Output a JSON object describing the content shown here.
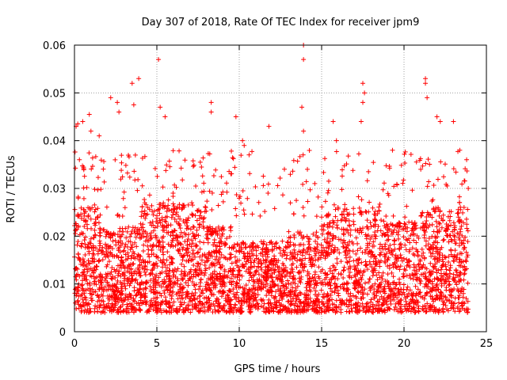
{
  "chart_data": {
    "type": "scatter",
    "title": "Day 307 of 2018, Rate Of TEC Index for receiver jpm9",
    "xlabel": "GPS time / hours",
    "ylabel": "ROTI / TECUs",
    "xlim": [
      0,
      25
    ],
    "ylim": [
      0,
      0.06
    ],
    "xticks": [
      0,
      5,
      10,
      15,
      20,
      25
    ],
    "xtick_labels": [
      "0",
      "5",
      "10",
      "15",
      "20",
      "25"
    ],
    "yticks": [
      0,
      0.01,
      0.02,
      0.03,
      0.04,
      0.05,
      0.06
    ],
    "ytick_labels": [
      "0",
      "0.01",
      "0.02",
      "0.03",
      "0.04",
      "0.05",
      "0.06"
    ],
    "grid": true,
    "marker": "+",
    "series": [
      {
        "name": "ROTI",
        "color": "#ff0000",
        "x_range_hours": [
          0,
          23.9
        ],
        "typical_range": [
          0.004,
          0.028
        ],
        "points": [
          [
            0.1,
            0.043
          ],
          [
            0.2,
            0.0435
          ],
          [
            0.3,
            0.036
          ],
          [
            0.5,
            0.044
          ],
          [
            0.9,
            0.0455
          ],
          [
            1.0,
            0.042
          ],
          [
            1.5,
            0.041
          ],
          [
            2.2,
            0.049
          ],
          [
            2.6,
            0.048
          ],
          [
            2.7,
            0.046
          ],
          [
            3.5,
            0.052
          ],
          [
            3.6,
            0.0475
          ],
          [
            3.9,
            0.053
          ],
          [
            5.1,
            0.057
          ],
          [
            5.2,
            0.047
          ],
          [
            5.5,
            0.045
          ],
          [
            8.3,
            0.048
          ],
          [
            8.3,
            0.046
          ],
          [
            9.8,
            0.045
          ],
          [
            10.2,
            0.04
          ],
          [
            10.3,
            0.039
          ],
          [
            11.8,
            0.043
          ],
          [
            13.9,
            0.06
          ],
          [
            13.9,
            0.057
          ],
          [
            13.8,
            0.047
          ],
          [
            13.9,
            0.042
          ],
          [
            15.7,
            0.044
          ],
          [
            15.9,
            0.04
          ],
          [
            17.5,
            0.052
          ],
          [
            17.6,
            0.05
          ],
          [
            17.5,
            0.048
          ],
          [
            17.4,
            0.044
          ],
          [
            19.3,
            0.038
          ],
          [
            21.3,
            0.053
          ],
          [
            21.3,
            0.052
          ],
          [
            21.4,
            0.049
          ],
          [
            22.0,
            0.045
          ],
          [
            22.2,
            0.044
          ],
          [
            23.0,
            0.044
          ],
          [
            23.8,
            0.036
          ],
          [
            0.05,
            0.006
          ],
          [
            0.2,
            0.012
          ],
          [
            0.4,
            0.018
          ],
          [
            0.6,
            0.008
          ],
          [
            1.2,
            0.01
          ],
          [
            2.0,
            0.014
          ],
          [
            3.1,
            0.009
          ],
          [
            4.2,
            0.02
          ],
          [
            5.0,
            0.004
          ],
          [
            5.3,
            0.006
          ],
          [
            6.2,
            0.025
          ],
          [
            7.5,
            0.012
          ],
          [
            9.1,
            0.01
          ],
          [
            10.5,
            0.008
          ],
          [
            11.0,
            0.005
          ],
          [
            11.9,
            0.006
          ],
          [
            12.9,
            0.016
          ],
          [
            14.3,
            0.007
          ],
          [
            15.0,
            0.024
          ],
          [
            16.6,
            0.018
          ],
          [
            18.0,
            0.022
          ],
          [
            18.8,
            0.009
          ],
          [
            19.7,
            0.006
          ],
          [
            20.6,
            0.014
          ],
          [
            21.5,
            0.011
          ],
          [
            22.1,
            0.004
          ],
          [
            23.0,
            0.012
          ],
          [
            23.6,
            0.008
          ],
          [
            23.9,
            0.03
          ]
        ]
      }
    ]
  }
}
